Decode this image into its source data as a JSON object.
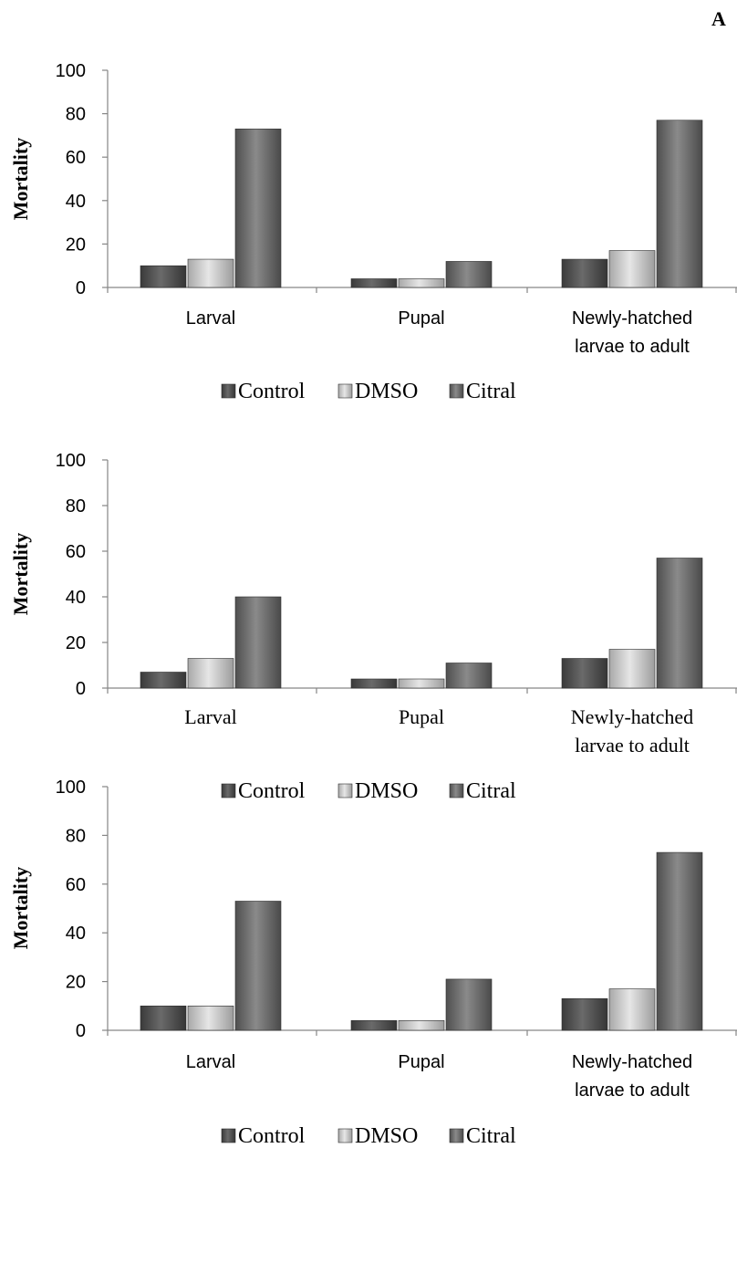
{
  "panel_letter": "A",
  "colors": {
    "Control": "#4d4d4d",
    "DMSO": "#c8c8c8",
    "Citral": "#6b6b6b",
    "axis": "#868686"
  },
  "chart_data": [
    {
      "type": "bar",
      "categories": [
        "Larval",
        "Pupal",
        "Newly-hatched larvae to adult"
      ],
      "category_lines": [
        [
          "Larval"
        ],
        [
          "Pupal"
        ],
        [
          "Newly-hatched",
          "larvae to adult"
        ]
      ],
      "series": [
        {
          "name": "Control",
          "values": [
            10,
            4,
            13
          ]
        },
        {
          "name": "DMSO",
          "values": [
            13,
            4,
            17
          ]
        },
        {
          "name": "Citral",
          "values": [
            73,
            12,
            77
          ]
        }
      ],
      "ylabel": "Mortality",
      "ylim": [
        0,
        100
      ],
      "yticks": [
        0,
        20,
        40,
        60,
        80,
        100
      ],
      "legend": "bottom",
      "grid": false
    },
    {
      "type": "bar",
      "categories": [
        "Larval",
        "Pupal",
        "Newly-hatched larvae to adult"
      ],
      "category_lines": [
        [
          "Larval"
        ],
        [
          "Pupal"
        ],
        [
          "Newly-hatched",
          "larvae to adult"
        ]
      ],
      "series": [
        {
          "name": "Control",
          "values": [
            7,
            4,
            13
          ]
        },
        {
          "name": "DMSO",
          "values": [
            13,
            4,
            17
          ]
        },
        {
          "name": "Citral",
          "values": [
            40,
            11,
            57
          ]
        }
      ],
      "ylabel": "Mortality",
      "ylim": [
        0,
        100
      ],
      "yticks": [
        0,
        20,
        40,
        60,
        80,
        100
      ],
      "legend": "bottom",
      "grid": false
    },
    {
      "type": "bar",
      "categories": [
        "Larval",
        "Pupal",
        "Newly-hatched larvae to adult"
      ],
      "category_lines": [
        [
          "Larval"
        ],
        [
          "Pupal"
        ],
        [
          "Newly-hatched",
          "larvae to adult"
        ]
      ],
      "series": [
        {
          "name": "Control",
          "values": [
            10,
            4,
            13
          ]
        },
        {
          "name": "DMSO",
          "values": [
            10,
            4,
            17
          ]
        },
        {
          "name": "Citral",
          "values": [
            53,
            21,
            73
          ]
        }
      ],
      "ylabel": "Mortality",
      "ylim": [
        0,
        100
      ],
      "yticks": [
        0,
        20,
        40,
        60,
        80,
        100
      ],
      "legend": "bottom",
      "grid": false
    }
  ]
}
